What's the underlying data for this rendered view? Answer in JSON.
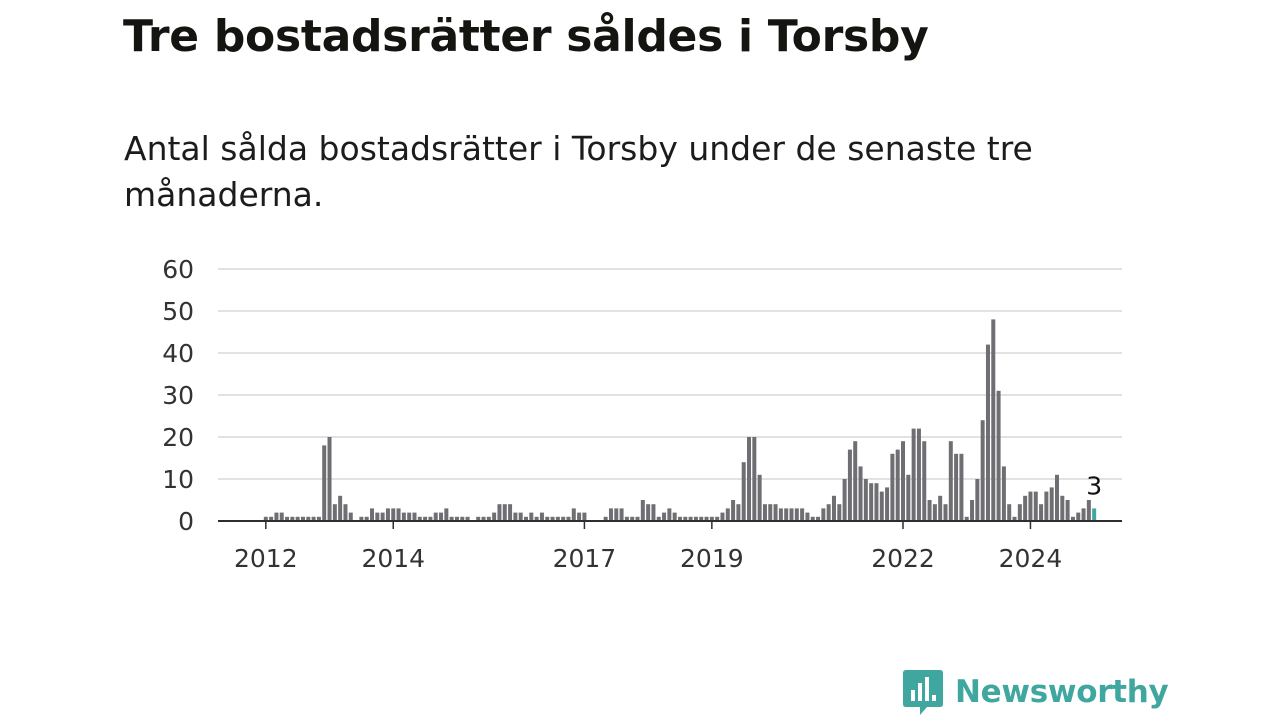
{
  "title": "Tre bostadsrätter såldes i Torsby",
  "subtitle": "Antal sålda bostadsrätter i Torsby under de senaste tre månaderna.",
  "brand": {
    "name": "Newsworthy",
    "icon": "bar-chart-speech-bubble-icon",
    "color": "#3fa7a0"
  },
  "chart_data": {
    "type": "bar",
    "start_period": "2011-12",
    "periodicity": "monthly",
    "values": [
      0,
      1,
      1,
      2,
      2,
      1,
      1,
      1,
      1,
      1,
      1,
      1,
      18,
      20,
      4,
      6,
      4,
      2,
      0,
      1,
      1,
      3,
      2,
      2,
      3,
      3,
      3,
      2,
      2,
      2,
      1,
      1,
      1,
      2,
      2,
      3,
      1,
      1,
      1,
      1,
      0,
      1,
      1,
      1,
      2,
      4,
      4,
      4,
      2,
      2,
      1,
      2,
      1,
      2,
      1,
      1,
      1,
      1,
      1,
      3,
      2,
      2,
      0,
      0,
      0,
      1,
      3,
      3,
      3,
      1,
      1,
      1,
      5,
      4,
      4,
      1,
      2,
      3,
      2,
      1,
      1,
      1,
      1,
      1,
      1,
      1,
      1,
      2,
      3,
      5,
      4,
      14,
      20,
      20,
      11,
      4,
      4,
      4,
      3,
      3,
      3,
      3,
      3,
      2,
      1,
      1,
      3,
      4,
      6,
      4,
      10,
      17,
      19,
      13,
      10,
      9,
      9,
      7,
      8,
      16,
      17,
      19,
      11,
      22,
      22,
      19,
      5,
      4,
      6,
      4,
      19,
      16,
      16,
      1,
      5,
      10,
      24,
      42,
      48,
      31,
      13,
      4,
      1,
      4,
      6,
      7,
      7,
      4,
      7,
      8,
      11,
      6,
      5,
      1,
      2,
      3,
      5,
      3
    ],
    "x_ticks": [
      "2012",
      "2014",
      "2017",
      "2019",
      "2022",
      "2024"
    ],
    "x_tick_positions": [
      "2012-01",
      "2014-01",
      "2017-01",
      "2019-01",
      "2022-01",
      "2024-01"
    ],
    "ylim": [
      0,
      60
    ],
    "y_ticks": [
      "0",
      "10",
      "20",
      "30",
      "40",
      "50",
      "60"
    ],
    "grid": true,
    "bar_color": "#6f6e73",
    "highlight_color": "#3fa7a0",
    "annotation": "3",
    "xlabel": "",
    "ylabel": ""
  }
}
